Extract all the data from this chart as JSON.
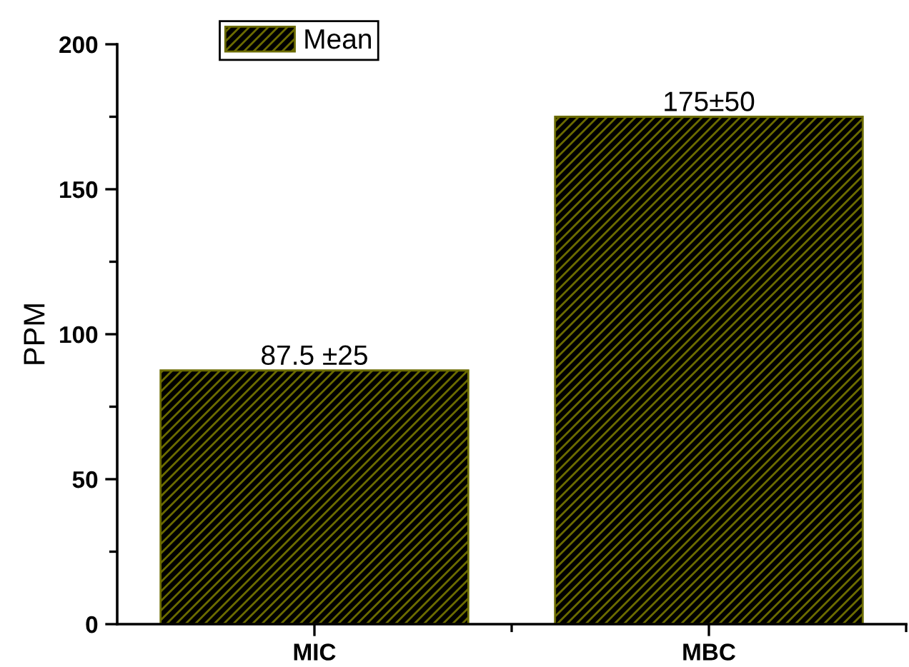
{
  "chart_data": {
    "type": "bar",
    "ylabel": "PPM",
    "categories": [
      "MIC",
      "MBC"
    ],
    "series": [
      {
        "name": "Mean",
        "color": "#6b6b00",
        "values": [
          87.5,
          175
        ],
        "value_labels": [
          "87.5 ±25",
          "175±50"
        ]
      }
    ],
    "ylim": [
      0,
      200
    ],
    "yticks": [
      0,
      50,
      100,
      150,
      200
    ],
    "grid": false,
    "legend": "top left"
  }
}
